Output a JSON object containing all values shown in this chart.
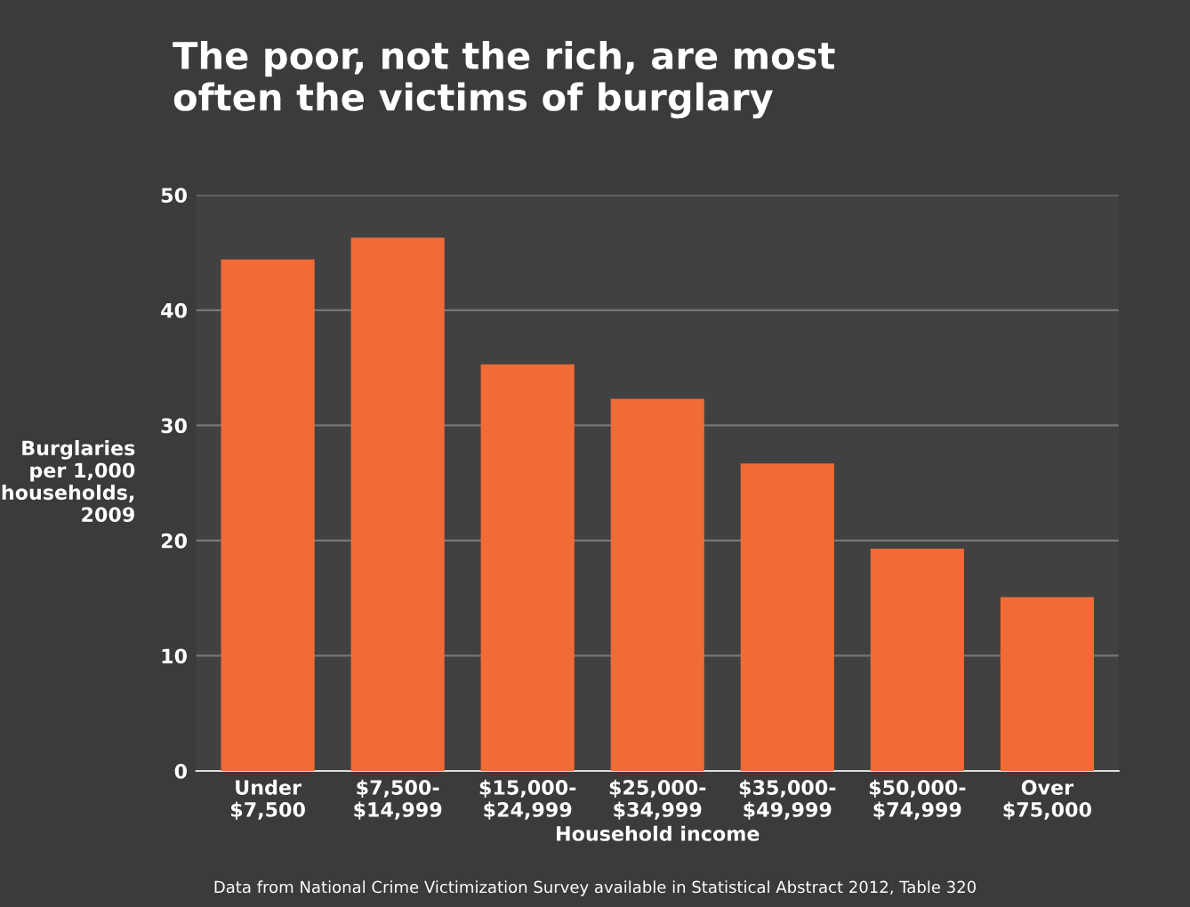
{
  "chart_data": {
    "type": "bar",
    "title": "The poor, not the rich, are most\noften the victims of burglary",
    "xlabel": "Household income",
    "ylabel": "Burglaries\nper 1,000\nhouseholds,\n2009",
    "categories": [
      "Under\n$7,500",
      "$7,500-\n$14,999",
      "$15,000-\n$24,999",
      "$25,000-\n$34,999",
      "$35,000-\n$49,999",
      "$50,000-\n$74,999",
      "Over\n$75,000"
    ],
    "values": [
      44.4,
      46.3,
      35.3,
      32.3,
      26.7,
      19.3,
      15.1
    ],
    "color": "#f06b35",
    "ylim": [
      0,
      50
    ],
    "yticks": [
      0,
      10,
      20,
      30,
      40,
      50
    ],
    "grid": "y",
    "annotations": [
      "Data from National Crime Victimization Survey available in Statistical Abstract 2012, Table 320"
    ]
  }
}
